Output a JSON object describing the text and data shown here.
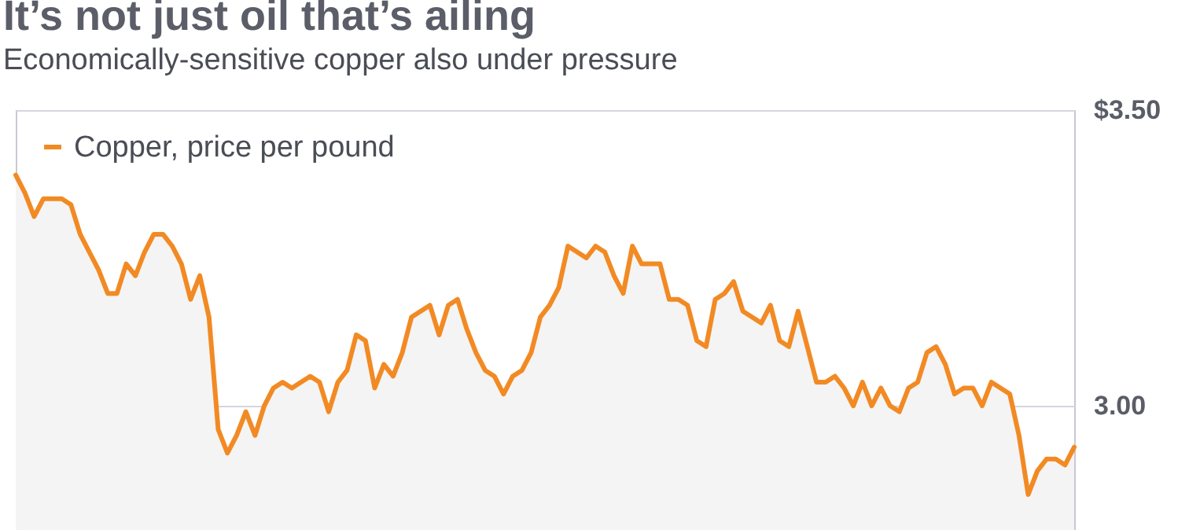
{
  "chart_data": {
    "type": "area",
    "title": "It’s not just oil that’s ailing",
    "subtitle": "Economically-sensitive copper also under pressure",
    "categories": [
      null,
      null,
      null,
      null,
      null,
      null,
      null,
      null,
      null,
      null,
      null,
      null,
      null,
      null,
      null,
      null,
      null,
      null,
      null,
      null,
      null,
      null,
      null,
      null,
      null,
      null,
      null,
      null,
      null,
      null,
      null,
      null,
      null,
      null,
      null,
      null,
      null,
      null,
      null,
      null,
      null,
      null,
      null,
      null,
      null,
      null,
      null,
      null,
      null,
      null,
      null,
      null,
      null,
      null,
      null,
      null,
      null,
      null,
      null,
      null,
      null,
      null,
      null,
      null,
      null,
      null,
      null,
      null,
      null,
      null,
      null,
      null,
      null,
      null,
      null,
      null,
      null,
      null,
      null,
      null,
      null,
      null,
      null,
      null,
      null,
      null,
      null,
      null,
      null,
      null,
      null,
      null,
      null,
      null,
      null,
      null,
      null,
      null,
      null,
      null,
      null,
      null,
      null,
      null,
      null,
      null,
      null,
      null,
      null,
      null,
      null,
      null,
      null,
      null,
      null,
      null
    ],
    "series": [
      {
        "name": "Copper, price per pound",
        "color": "#f28a24",
        "values": [
          3.39,
          3.36,
          3.32,
          3.35,
          3.35,
          3.35,
          3.34,
          3.29,
          3.26,
          3.23,
          3.19,
          3.19,
          3.24,
          3.22,
          3.26,
          3.29,
          3.29,
          3.27,
          3.24,
          3.18,
          3.22,
          3.15,
          2.96,
          2.92,
          2.95,
          2.99,
          2.95,
          3.0,
          3.03,
          3.04,
          3.03,
          3.04,
          3.05,
          3.04,
          2.99,
          3.04,
          3.06,
          3.12,
          3.11,
          3.03,
          3.07,
          3.05,
          3.09,
          3.15,
          3.16,
          3.17,
          3.12,
          3.17,
          3.18,
          3.13,
          3.09,
          3.06,
          3.05,
          3.02,
          3.05,
          3.06,
          3.09,
          3.15,
          3.17,
          3.2,
          3.27,
          3.26,
          3.25,
          3.27,
          3.26,
          3.22,
          3.19,
          3.27,
          3.24,
          3.24,
          3.24,
          3.18,
          3.18,
          3.17,
          3.11,
          3.1,
          3.18,
          3.19,
          3.21,
          3.16,
          3.15,
          3.14,
          3.17,
          3.11,
          3.1,
          3.16,
          3.1,
          3.04,
          3.04,
          3.05,
          3.03,
          3.0,
          3.04,
          3.0,
          3.03,
          3.0,
          2.99,
          3.03,
          3.04,
          3.09,
          3.1,
          3.07,
          3.02,
          3.03,
          3.03,
          3.0,
          3.04,
          3.03,
          3.02,
          2.95,
          2.85,
          2.89,
          2.91,
          2.91,
          2.9,
          2.93
        ]
      }
    ],
    "ylim": [
      2.79,
      3.5
    ],
    "yticks": [
      {
        "value": 3.5,
        "label": "$3.50"
      },
      {
        "value": 3,
        "label": "3.00"
      }
    ],
    "grid": "y",
    "legend": "top left",
    "tick_labels": "y"
  }
}
